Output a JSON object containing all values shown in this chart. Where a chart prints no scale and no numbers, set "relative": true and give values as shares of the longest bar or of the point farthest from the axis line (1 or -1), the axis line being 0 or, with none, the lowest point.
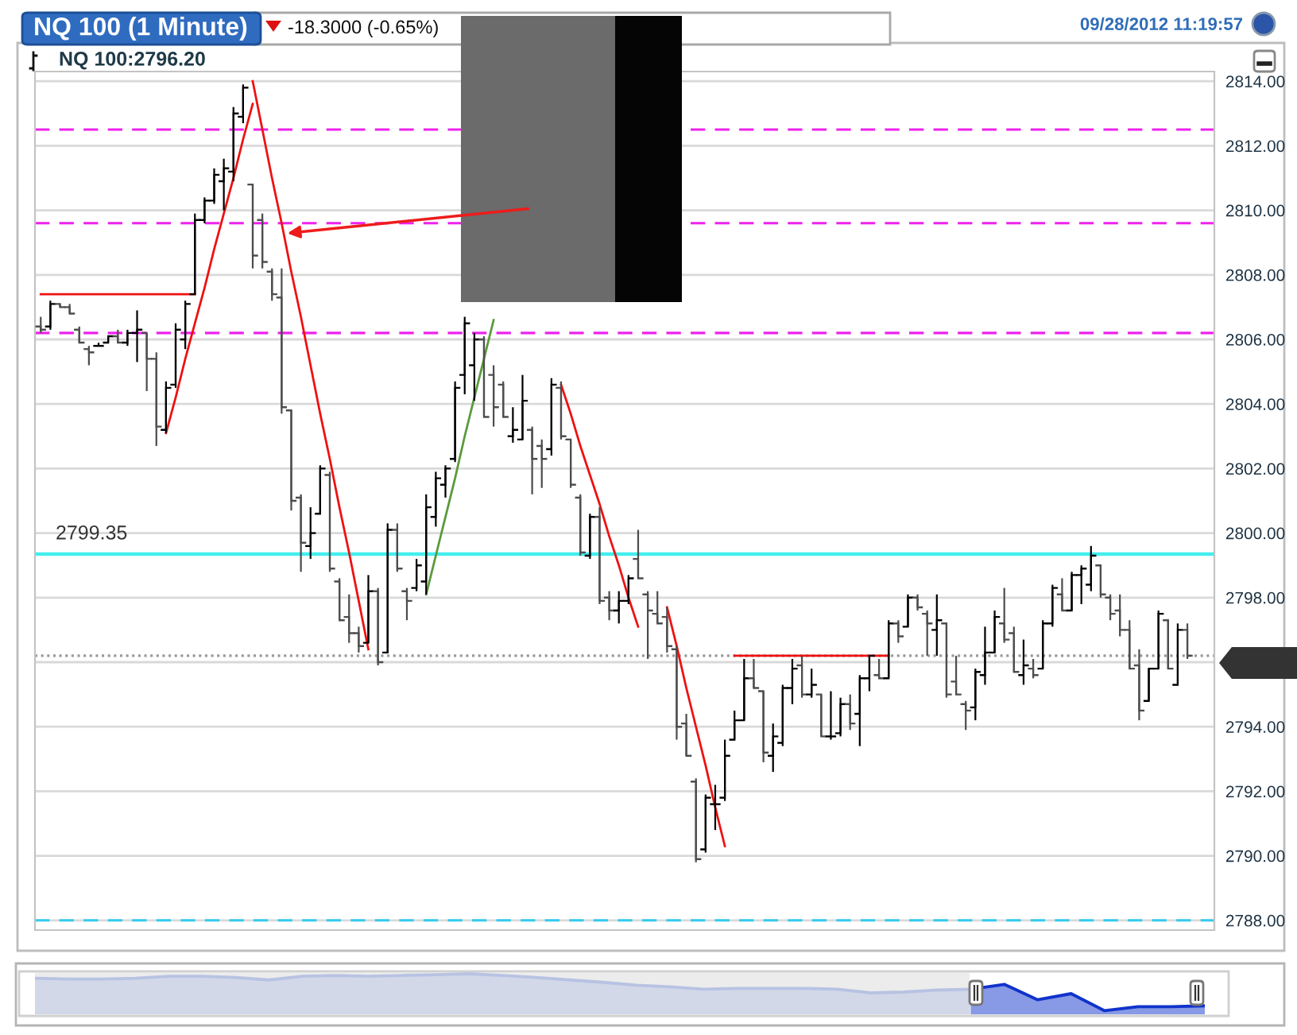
{
  "chart_data": [
    {
      "type": "candlestick",
      "title": "NQ 100 (1 Minute)",
      "subtitle": "-18.3000 (-0.65%)",
      "annotations": [
        "09/28/2012 11:19:57",
        "NQ 100:2796.20"
      ],
      "categories": [
        null,
        null,
        null,
        null,
        null,
        null,
        null,
        null,
        null,
        null,
        null,
        null,
        null,
        null,
        null,
        null,
        null,
        null,
        null,
        null,
        null,
        null,
        null,
        null,
        null,
        null,
        null,
        null,
        null,
        null,
        null,
        null,
        null,
        null,
        null,
        null,
        null,
        null,
        null,
        null,
        null,
        null,
        null,
        null,
        null,
        null,
        null,
        null,
        null,
        null,
        null,
        null,
        null,
        null,
        null,
        null,
        null,
        null,
        null,
        null,
        null,
        null,
        null,
        null,
        null,
        null,
        null,
        null,
        null,
        null,
        null,
        null,
        null,
        null,
        null,
        null,
        null,
        null,
        null,
        null,
        null,
        null,
        null,
        null,
        null,
        null,
        null,
        null,
        null,
        null,
        null,
        null,
        null,
        null,
        null,
        null,
        null,
        null,
        null,
        null,
        null,
        null,
        null,
        null,
        null,
        null,
        null,
        null,
        null,
        null,
        null,
        null,
        null,
        null,
        null,
        null,
        null,
        null,
        null,
        null
      ],
      "ohlc": [
        [
          2806.4,
          2806.7,
          2806.2,
          2806.3
        ],
        [
          2806.4,
          2807.2,
          2806.3,
          2807.1
        ],
        [
          2807.1,
          2807.1,
          2807.0,
          2807.0
        ],
        [
          2807.0,
          2807.1,
          2806.8,
          2806.8
        ],
        [
          2806.3,
          2806.4,
          2805.9,
          2805.9
        ],
        [
          2805.7,
          2805.8,
          2805.2,
          2805.6
        ],
        [
          2805.8,
          2805.9,
          2805.8,
          2805.8
        ],
        [
          2805.9,
          2806.1,
          2805.9,
          2806.1
        ],
        [
          2806.1,
          2806.3,
          2805.9,
          2805.9
        ],
        [
          2805.9,
          2806.3,
          2805.8,
          2806.2
        ],
        [
          2806.2,
          2806.9,
          2805.3,
          2806.3
        ],
        [
          2806.2,
          2806.2,
          2804.4,
          2805.4
        ],
        [
          2805.4,
          2805.6,
          2802.7,
          2803.3
        ],
        [
          2803.2,
          2804.7,
          2803.1,
          2804.5
        ],
        [
          2804.6,
          2806.5,
          2804.5,
          2806.3
        ],
        [
          2806.0,
          2807.2,
          2805.7,
          2807.1
        ],
        [
          2807.4,
          2809.9,
          2807.4,
          2809.7
        ],
        [
          2809.7,
          2810.4,
          2809.6,
          2810.3
        ],
        [
          2810.3,
          2811.3,
          2810.2,
          2811.1
        ],
        [
          2810.9,
          2811.6,
          2810.0,
          2811.3
        ],
        [
          2811.2,
          2813.2,
          2810.9,
          2813.0
        ],
        [
          2812.9,
          2813.9,
          2812.7,
          2813.8
        ],
        [
          2810.8,
          2810.8,
          2808.2,
          2808.6
        ],
        [
          2809.7,
          2809.9,
          2808.2,
          2808.4
        ],
        [
          2808.1,
          2808.2,
          2807.2,
          2807.4
        ],
        [
          2807.3,
          2808.2,
          2803.7,
          2803.9
        ],
        [
          2803.8,
          2803.8,
          2800.7,
          2801.0
        ],
        [
          2801.1,
          2801.2,
          2798.8,
          2799.7
        ],
        [
          2799.6,
          2800.8,
          2799.2,
          2800.0
        ],
        [
          2800.6,
          2802.1,
          2800.6,
          2802.0
        ],
        [
          2801.8,
          2801.9,
          2798.8,
          2798.9
        ],
        [
          2798.5,
          2798.6,
          2797.3,
          2797.3
        ],
        [
          2797.4,
          2798.1,
          2796.6,
          2796.9
        ],
        [
          2796.9,
          2797.1,
          2796.3,
          2796.5
        ],
        [
          2796.6,
          2798.7,
          2796.6,
          2798.2
        ],
        [
          2798.2,
          2798.3,
          2795.9,
          2796.0
        ],
        [
          2796.3,
          2800.3,
          2796.3,
          2800.1
        ],
        [
          2800.1,
          2800.3,
          2798.8,
          2798.9
        ],
        [
          2798.2,
          2798.3,
          2797.3,
          2797.9
        ],
        [
          2798.3,
          2799.2,
          2798.2,
          2799.0
        ],
        [
          2798.5,
          2801.2,
          2798.1,
          2800.8
        ],
        [
          2800.5,
          2801.9,
          2800.2,
          2801.7
        ],
        [
          2801.5,
          2802.1,
          2801.1,
          2802.0
        ],
        [
          2802.3,
          2804.7,
          2802.2,
          2804.5
        ],
        [
          2804.9,
          2806.7,
          2804.3,
          2806.5
        ],
        [
          2805.2,
          2806.2,
          2804.1,
          2806.0
        ],
        [
          2806.0,
          2806.1,
          2803.6,
          2803.6
        ],
        [
          2804.9,
          2805.2,
          2803.3,
          2803.9
        ],
        [
          2804.6,
          2804.7,
          2803.6,
          2803.6
        ],
        [
          2803.0,
          2803.9,
          2802.8,
          2803.2
        ],
        [
          2802.9,
          2804.9,
          2802.9,
          2804.1
        ],
        [
          2803.2,
          2803.3,
          2801.2,
          2802.3
        ],
        [
          2802.7,
          2802.9,
          2801.4,
          2802.3
        ],
        [
          2802.6,
          2804.8,
          2802.4,
          2804.6
        ],
        [
          2804.5,
          2804.7,
          2802.9,
          2803.0
        ],
        [
          2802.9,
          2802.9,
          2801.4,
          2801.5
        ],
        [
          2801.1,
          2801.2,
          2799.3,
          2799.4
        ],
        [
          2799.3,
          2800.6,
          2799.2,
          2800.5
        ],
        [
          2800.5,
          2800.8,
          2797.8,
          2797.9
        ],
        [
          2798.0,
          2798.2,
          2797.3,
          2797.6
        ],
        [
          2797.6,
          2798.2,
          2797.2,
          2797.9
        ],
        [
          2797.9,
          2798.7,
          2797.8,
          2798.6
        ],
        [
          2799.2,
          2800.1,
          2798.6,
          2798.6
        ],
        [
          2798.1,
          2798.2,
          2796.1,
          2797.6
        ],
        [
          2797.5,
          2798.2,
          2797.2,
          2797.2
        ],
        [
          2797.4,
          2797.7,
          2796.3,
          2796.5
        ],
        [
          2796.4,
          2796.5,
          2793.6,
          2794.0
        ],
        [
          2794.1,
          2794.4,
          2793.1,
          2793.1
        ],
        [
          2792.3,
          2792.4,
          2789.8,
          2789.9
        ],
        [
          2790.2,
          2791.9,
          2790.1,
          2791.8
        ],
        [
          2791.6,
          2792.2,
          2790.8,
          2791.6
        ],
        [
          2791.8,
          2793.6,
          2791.7,
          2793.1
        ],
        [
          2793.6,
          2794.5,
          2793.6,
          2794.2
        ],
        [
          2794.2,
          2796.1,
          2794.2,
          2795.5
        ],
        [
          2795.5,
          2796.1,
          2795.2,
          2795.2
        ],
        [
          2795.1,
          2795.1,
          2792.9,
          2793.2
        ],
        [
          2793.1,
          2794.1,
          2792.6,
          2793.7
        ],
        [
          2793.5,
          2795.3,
          2793.4,
          2795.2
        ],
        [
          2795.2,
          2796.1,
          2794.7,
          2795.8
        ],
        [
          2795.9,
          2796.2,
          2794.9,
          2795.0
        ],
        [
          2795.0,
          2795.8,
          2794.9,
          2795.3
        ],
        [
          2795.0,
          2795.0,
          2793.7,
          2793.7
        ],
        [
          2793.7,
          2795.1,
          2793.6,
          2793.7
        ],
        [
          2793.8,
          2794.9,
          2793.7,
          2794.7
        ],
        [
          2794.7,
          2795.0,
          2793.9,
          2794.1
        ],
        [
          2794.4,
          2795.6,
          2793.4,
          2795.5
        ],
        [
          2795.5,
          2796.2,
          2795.1,
          2796.2
        ],
        [
          2795.6,
          2796.1,
          2795.5,
          2795.5
        ],
        [
          2795.5,
          2797.3,
          2795.5,
          2797.2
        ],
        [
          2797.2,
          2797.3,
          2796.6,
          2796.8
        ],
        [
          2797.1,
          2798.1,
          2797.1,
          2798.0
        ],
        [
          2798.0,
          2798.1,
          2797.6,
          2797.7
        ],
        [
          2797.5,
          2797.6,
          2796.2,
          2797.2
        ],
        [
          2797.0,
          2798.1,
          2796.2,
          2797.3
        ],
        [
          2797.2,
          2797.2,
          2794.9,
          2795.0
        ],
        [
          2795.4,
          2796.2,
          2795.0,
          2795.0
        ],
        [
          2794.7,
          2794.8,
          2793.9,
          2794.5
        ],
        [
          2794.6,
          2795.8,
          2794.2,
          2795.7
        ],
        [
          2795.6,
          2797.1,
          2795.3,
          2796.3
        ],
        [
          2796.3,
          2797.6,
          2796.3,
          2797.4
        ],
        [
          2797.2,
          2798.3,
          2796.6,
          2796.7
        ],
        [
          2796.9,
          2797.1,
          2795.7,
          2795.7
        ],
        [
          2795.6,
          2796.7,
          2795.3,
          2795.9
        ],
        [
          2795.8,
          2796.1,
          2795.5,
          2795.6
        ],
        [
          2795.8,
          2797.3,
          2795.8,
          2797.2
        ],
        [
          2797.2,
          2798.4,
          2797.1,
          2798.3
        ],
        [
          2798.1,
          2798.6,
          2797.6,
          2797.6
        ],
        [
          2797.6,
          2798.8,
          2797.6,
          2798.7
        ],
        [
          2798.7,
          2799.0,
          2797.8,
          2798.9
        ],
        [
          2798.4,
          2799.6,
          2798.2,
          2799.3
        ],
        [
          2799.0,
          2799.0,
          2798.0,
          2798.1
        ],
        [
          2798.0,
          2798.1,
          2797.3,
          2797.5
        ],
        [
          2797.6,
          2798.1,
          2796.8,
          2797.0
        ],
        [
          2797.0,
          2797.3,
          2795.8,
          2795.8
        ],
        [
          2795.9,
          2796.4,
          2794.2,
          2794.5
        ],
        [
          2794.8,
          2795.8,
          2794.8,
          2795.8
        ],
        [
          2795.8,
          2797.6,
          2795.8,
          2797.5
        ],
        [
          2797.3,
          2797.3,
          2795.8,
          2795.8
        ],
        [
          2795.3,
          2797.2,
          2795.3,
          2797.0
        ],
        [
          2797.0,
          2797.2,
          2796.1,
          2796.2
        ]
      ],
      "colors": [
        "#4d4d4d",
        "#000000",
        "#4d4d4d",
        "#4d4d4d",
        "#4d4d4d",
        "#4d4d4d",
        "#000000",
        "#000000",
        "#4d4d4d",
        "#000000",
        "#000000",
        "#4d4d4d",
        "#4d4d4d",
        "#000000",
        "#000000",
        "#000000",
        "#000000",
        "#000000",
        "#000000",
        "#000000",
        "#000000",
        "#000000",
        "#4d4d4d",
        "#4d4d4d",
        "#4d4d4d",
        "#4d4d4d",
        "#4d4d4d",
        "#4d4d4d",
        "#000000",
        "#000000",
        "#4d4d4d",
        "#4d4d4d",
        "#4d4d4d",
        "#4d4d4d",
        "#000000",
        "#4d4d4d",
        "#000000",
        "#4d4d4d",
        "#4d4d4d",
        "#000000",
        "#000000",
        "#000000",
        "#000000",
        "#000000",
        "#000000",
        "#000000",
        "#4d4d4d",
        "#4d4d4d",
        "#4d4d4d",
        "#000000",
        "#000000",
        "#4d4d4d",
        "#4d4d4d",
        "#000000",
        "#4d4d4d",
        "#4d4d4d",
        "#4d4d4d",
        "#000000",
        "#4d4d4d",
        "#4d4d4d",
        "#000000",
        "#000000",
        "#4d4d4d",
        "#4d4d4d",
        "#4d4d4d",
        "#4d4d4d",
        "#4d4d4d",
        "#4d4d4d",
        "#4d4d4d",
        "#000000",
        "#000000",
        "#000000",
        "#000000",
        "#000000",
        "#4d4d4d",
        "#4d4d4d",
        "#000000",
        "#000000",
        "#000000",
        "#4d4d4d",
        "#000000",
        "#4d4d4d",
        "#000000",
        "#000000",
        "#4d4d4d",
        "#000000",
        "#000000",
        "#4d4d4d",
        "#000000",
        "#4d4d4d",
        "#000000",
        "#4d4d4d",
        "#4d4d4d",
        "#000000",
        "#4d4d4d",
        "#4d4d4d",
        "#4d4d4d",
        "#000000",
        "#000000",
        "#000000",
        "#4d4d4d",
        "#4d4d4d",
        "#000000",
        "#4d4d4d",
        "#000000",
        "#000000",
        "#4d4d4d",
        "#000000",
        "#000000",
        "#000000",
        "#4d4d4d",
        "#4d4d4d",
        "#4d4d4d",
        "#4d4d4d",
        "#4d4d4d",
        "#000000",
        "#000000",
        "#4d4d4d",
        "#000000",
        "#4d4d4d"
      ],
      "series": [
        {
          "type": "line",
          "color": "#ee1111",
          "values": [
            null,
            null,
            null,
            null,
            null,
            null,
            null,
            null,
            null,
            null,
            null,
            null,
            null,
            2803.1,
            2804.2,
            2805.4,
            2806.5,
            2807.6,
            2808.8,
            2809.9,
            2811.0,
            2812.2,
            2813.3,
            null,
            null,
            null,
            null,
            null,
            null,
            null,
            null,
            null,
            null,
            null,
            null,
            null,
            null,
            null,
            null,
            null,
            null,
            null,
            null,
            null,
            null,
            null,
            null,
            null,
            null,
            null,
            null,
            null,
            null,
            null,
            null,
            null,
            null,
            null,
            null,
            null,
            null,
            null,
            null,
            null,
            null,
            null,
            null,
            null,
            null,
            null,
            null,
            null,
            null,
            null,
            null,
            null,
            null,
            null,
            null,
            null,
            null,
            null,
            null,
            null,
            null,
            null,
            null,
            null,
            null,
            null,
            null,
            null,
            null,
            null,
            null,
            null,
            null,
            null,
            null,
            null,
            null,
            null,
            null,
            null,
            null,
            null,
            null,
            null,
            null,
            null,
            null,
            null,
            null,
            null,
            null,
            null,
            null,
            null,
            null,
            null
          ]
        },
        {
          "type": "line",
          "color": "#ee1111",
          "values": [
            null,
            null,
            null,
            null,
            null,
            null,
            null,
            null,
            null,
            null,
            null,
            null,
            null,
            null,
            null,
            null,
            null,
            null,
            null,
            null,
            null,
            null,
            2814.0,
            2812.5,
            2811.0,
            2809.6,
            2808.1,
            2806.7,
            2805.2,
            2803.7,
            2802.3,
            2800.8,
            2799.4,
            2797.9,
            2796.4,
            null,
            null,
            null,
            null,
            null,
            null,
            null,
            null,
            null,
            null,
            null,
            null,
            null,
            null,
            null,
            null,
            null,
            null,
            null,
            null,
            null,
            null,
            null,
            null,
            null,
            null,
            null,
            null,
            null,
            null,
            null,
            null,
            null,
            null,
            null,
            null,
            null,
            null,
            null,
            null,
            null,
            null,
            null,
            null,
            null,
            null,
            null,
            null,
            null,
            null,
            null,
            null,
            null,
            null,
            null,
            null,
            null,
            null,
            null,
            null,
            null,
            null,
            null,
            null,
            null,
            null,
            null,
            null,
            null,
            null,
            null,
            null,
            null,
            null,
            null,
            null,
            null,
            null,
            null,
            null,
            null,
            null,
            null,
            null,
            null
          ]
        },
        {
          "type": "line",
          "color": "#5a9a3c",
          "values": [
            null,
            null,
            null,
            null,
            null,
            null,
            null,
            null,
            null,
            null,
            null,
            null,
            null,
            null,
            null,
            null,
            null,
            null,
            null,
            null,
            null,
            null,
            null,
            null,
            null,
            null,
            null,
            null,
            null,
            null,
            null,
            null,
            null,
            null,
            null,
            null,
            null,
            null,
            null,
            null,
            2798.1,
            2799.3,
            2800.5,
            2801.7,
            2803.0,
            2804.2,
            2805.4,
            2806.6,
            null,
            null,
            null,
            null,
            null,
            null,
            null,
            null,
            null,
            null,
            null,
            null,
            null,
            null,
            null,
            null,
            null,
            null,
            null,
            null,
            null,
            null,
            null,
            null,
            null,
            null,
            null,
            null,
            null,
            null,
            null,
            null,
            null,
            null,
            null,
            null,
            null,
            null,
            null,
            null,
            null,
            null,
            null,
            null,
            null,
            null,
            null,
            null,
            null,
            null,
            null,
            null,
            null,
            null,
            null,
            null,
            null,
            null,
            null,
            null,
            null,
            null,
            null,
            null,
            null,
            null,
            null,
            null,
            null,
            null,
            null,
            null
          ]
        },
        {
          "type": "line",
          "color": "#ee1111",
          "values": [
            null,
            null,
            null,
            null,
            null,
            null,
            null,
            null,
            null,
            null,
            null,
            null,
            null,
            null,
            null,
            null,
            null,
            null,
            null,
            null,
            null,
            null,
            null,
            null,
            null,
            null,
            null,
            null,
            null,
            null,
            null,
            null,
            null,
            null,
            null,
            null,
            null,
            null,
            null,
            null,
            null,
            null,
            null,
            null,
            null,
            null,
            null,
            null,
            null,
            null,
            null,
            null,
            null,
            null,
            2804.6,
            2803.7,
            2802.7,
            2801.8,
            2800.9,
            2799.9,
            2799.0,
            2798.0,
            2797.1,
            null,
            null,
            null,
            null,
            null,
            null,
            null,
            null,
            null,
            null,
            null,
            null,
            null,
            null,
            null,
            null,
            null,
            null,
            null,
            null,
            null,
            null,
            null,
            null,
            null,
            null,
            null,
            null,
            null,
            null,
            null,
            null,
            null,
            null,
            null,
            null,
            null,
            null,
            null,
            null,
            null,
            null,
            null,
            null,
            null,
            null,
            null,
            null,
            null,
            null,
            null,
            null,
            null,
            null,
            null,
            null,
            null
          ]
        },
        {
          "type": "line",
          "color": "#ee1111",
          "values": [
            null,
            null,
            null,
            null,
            null,
            null,
            null,
            null,
            null,
            null,
            null,
            null,
            null,
            null,
            null,
            null,
            null,
            null,
            null,
            null,
            null,
            null,
            null,
            null,
            null,
            null,
            null,
            null,
            null,
            null,
            null,
            null,
            null,
            null,
            null,
            null,
            null,
            null,
            null,
            null,
            null,
            null,
            null,
            null,
            null,
            null,
            null,
            null,
            null,
            null,
            null,
            null,
            null,
            null,
            null,
            null,
            null,
            null,
            null,
            null,
            null,
            null,
            null,
            null,
            null,
            2797.7,
            2796.5,
            2795.2,
            2794.0,
            2792.8,
            2791.5,
            2790.3,
            null,
            null,
            null,
            null,
            null,
            null,
            null,
            null,
            null,
            null,
            null,
            null,
            null,
            null,
            null,
            null,
            null,
            null,
            null,
            null,
            null,
            null,
            null,
            null,
            null,
            null,
            null,
            null,
            null,
            null,
            null,
            null,
            null,
            null,
            null,
            null,
            null,
            null,
            null,
            null,
            null,
            null,
            null,
            null,
            null,
            null,
            null,
            null
          ]
        },
        {
          "type": "line",
          "color": "#ee1111",
          "values": [
            2807.4,
            2807.4,
            2807.4,
            2807.4,
            2807.4,
            2807.4,
            2807.4,
            2807.4,
            2807.4,
            2807.4,
            2807.4,
            2807.4,
            2807.4,
            2807.4,
            2807.4,
            2807.4,
            2807.4,
            null,
            null,
            null,
            null,
            null,
            null,
            null,
            null,
            null,
            null,
            null,
            null,
            null,
            null,
            null,
            null,
            null,
            null,
            null,
            null,
            null,
            null,
            null,
            null,
            null,
            null,
            null,
            null,
            null,
            null,
            null,
            null,
            null,
            null,
            null,
            null,
            null,
            null,
            null,
            null,
            null,
            null,
            null,
            null,
            null,
            null,
            null,
            null,
            null,
            null,
            null,
            null,
            null,
            null,
            null,
            null,
            null,
            null,
            null,
            null,
            null,
            null,
            null,
            null,
            null,
            null,
            null,
            null,
            null,
            null,
            null,
            null,
            null,
            null,
            null,
            null,
            null,
            null,
            null,
            null,
            null,
            null,
            null,
            null,
            null,
            null,
            null,
            null,
            null,
            null,
            null,
            null,
            null,
            null,
            null,
            null,
            null,
            null,
            null,
            null,
            null,
            null,
            null
          ]
        },
        {
          "type": "line",
          "color": "#ee1111",
          "values": [
            null,
            null,
            null,
            null,
            null,
            null,
            null,
            null,
            null,
            null,
            null,
            null,
            null,
            null,
            null,
            null,
            null,
            null,
            null,
            null,
            null,
            null,
            null,
            null,
            null,
            null,
            null,
            null,
            null,
            null,
            null,
            null,
            null,
            null,
            null,
            null,
            null,
            null,
            null,
            null,
            null,
            null,
            null,
            null,
            null,
            null,
            null,
            null,
            null,
            null,
            null,
            null,
            null,
            null,
            null,
            null,
            null,
            null,
            null,
            null,
            null,
            null,
            null,
            null,
            null,
            null,
            null,
            null,
            null,
            null,
            null,
            null,
            2796.2,
            2796.2,
            2796.2,
            2796.2,
            2796.2,
            2796.2,
            2796.2,
            2796.2,
            2796.2,
            2796.2,
            2796.2,
            2796.2,
            2796.2,
            2796.2,
            2796.2,
            2796.2,
            2796.2,
            null,
            null,
            null,
            null,
            null,
            null,
            null,
            null,
            null,
            null,
            null,
            null,
            null,
            null,
            null,
            null,
            null,
            null,
            null,
            null,
            null,
            null,
            null,
            null,
            null,
            null,
            null,
            null,
            null,
            null,
            null
          ]
        }
      ],
      "ref_lines": [
        {
          "axis": "y",
          "value": 2799.35,
          "label": "2799.35",
          "color": "#44eeee",
          "line_style": "solid"
        },
        {
          "axis": "y",
          "value": 2812.5,
          "color": "#ee22ee",
          "line_style": "dashed"
        },
        {
          "axis": "y",
          "value": 2809.6,
          "color": "#ee22ee",
          "line_style": "dashed"
        },
        {
          "axis": "y",
          "value": 2806.2,
          "color": "#ee22ee",
          "line_style": "dashed"
        },
        {
          "axis": "y",
          "value": 2796.2,
          "color": "#999999",
          "line_style": "dotted"
        },
        {
          "axis": "y",
          "value": 2788,
          "color": "#33ccee",
          "line_style": "dashed"
        }
      ],
      "ylim": [
        2787.7,
        2814.3
      ],
      "yticks": [
        {
          "value": 2788,
          "label": "2788.00"
        },
        {
          "value": 2790,
          "label": "2790.00"
        },
        {
          "value": 2792,
          "label": "2792.00"
        },
        {
          "value": 2794,
          "label": "2794.00"
        },
        {
          "value": 2796,
          "label": null
        },
        {
          "value": 2798,
          "label": "2798.00"
        },
        {
          "value": 2800,
          "label": "2800.00"
        },
        {
          "value": 2802,
          "label": "2802.00"
        },
        {
          "value": 2804,
          "label": "2804.00"
        },
        {
          "value": 2806,
          "label": "2806.00"
        },
        {
          "value": 2808,
          "label": "2808.00"
        },
        {
          "value": 2810,
          "label": "2810.00"
        },
        {
          "value": 2812,
          "label": "2812.00"
        },
        {
          "value": 2814,
          "label": "2814.00"
        }
      ],
      "grid": "y",
      "tick_labels": "y"
    },
    {
      "type": "area",
      "relative": true,
      "tick_labels": false,
      "categories": [
        null,
        null,
        null,
        null,
        null,
        null,
        null,
        null,
        null,
        null,
        null,
        null,
        null,
        null,
        null,
        null,
        null,
        null,
        null,
        null,
        null,
        null,
        null,
        null,
        null,
        null,
        null,
        null,
        null,
        null,
        null,
        null,
        null,
        null,
        null,
        null
      ],
      "series": [
        {
          "color": "#b8c3e3",
          "values": [
            0.89,
            0.87,
            0.87,
            0.89,
            0.94,
            0.94,
            0.91,
            0.85,
            0.94,
            0.96,
            0.94,
            0.96,
            0.98,
            1,
            0.96,
            0.91,
            0.85,
            0.79,
            0.72,
            0.68,
            0.62,
            0.64,
            0.64,
            0.64,
            0.62,
            0.53,
            0.55,
            0.6,
            0.62,
            null,
            null,
            null,
            null,
            null,
            null,
            null
          ]
        },
        {
          "color": "#1133cc",
          "values": [
            null,
            null,
            null,
            null,
            null,
            null,
            null,
            null,
            null,
            null,
            null,
            null,
            null,
            null,
            null,
            null,
            null,
            null,
            null,
            null,
            null,
            null,
            null,
            null,
            null,
            null,
            null,
            null,
            0.62,
            0.74,
            0.36,
            0.51,
            0.09,
            0.19,
            0.19,
            0.21
          ]
        }
      ]
    }
  ]
}
